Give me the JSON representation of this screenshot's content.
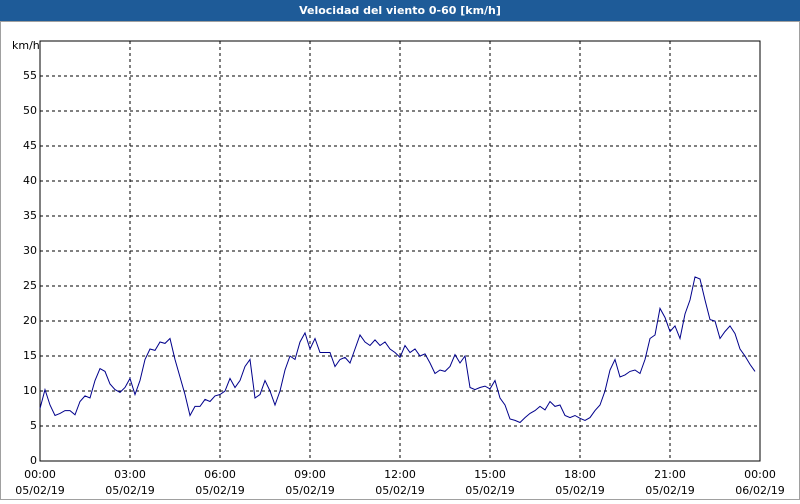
{
  "chart_data": {
    "type": "line",
    "title": "Velocidad del viento 0-60 [km/h]",
    "y_label": "km/h",
    "x": [
      0,
      10,
      20,
      30,
      40,
      50,
      60,
      70,
      80,
      90,
      100,
      110,
      120,
      130,
      140,
      150,
      160,
      170,
      180,
      190,
      200,
      210,
      220,
      230,
      240,
      250,
      260,
      270,
      280,
      290,
      300,
      310,
      320,
      330,
      340,
      350,
      360,
      370,
      380,
      390,
      400,
      410,
      420,
      430,
      440,
      450,
      460,
      470,
      480,
      490,
      500,
      510,
      520,
      530,
      540,
      550,
      560,
      570,
      580,
      590,
      600,
      610,
      620,
      630,
      640,
      650,
      660,
      670,
      680,
      690,
      700,
      710,
      720,
      730,
      740,
      750,
      760,
      770,
      780,
      790,
      800,
      810,
      820,
      830,
      840,
      850,
      860,
      870,
      880,
      890,
      900,
      910,
      920,
      930,
      940,
      950,
      960,
      970,
      980,
      990,
      1000,
      1010,
      1020,
      1030,
      1040,
      1050,
      1060,
      1070,
      1080,
      1090,
      1100,
      1110,
      1120,
      1130,
      1140,
      1150,
      1160,
      1170,
      1180,
      1190,
      1200,
      1210,
      1220,
      1230,
      1240,
      1250,
      1260,
      1270,
      1280,
      1290,
      1300,
      1310,
      1320,
      1330,
      1340,
      1350,
      1360,
      1370,
      1380,
      1390,
      1400,
      1410,
      1420,
      1430
    ],
    "series": [
      {
        "name": "Velocidad del viento",
        "color": "#00008b",
        "values": [
          7.5,
          10.2,
          8,
          6.5,
          6.8,
          7.2,
          7.2,
          6.6,
          8.5,
          9.3,
          9,
          11.5,
          13.2,
          12.8,
          11,
          10.2,
          9.8,
          10.5,
          11.8,
          9.5,
          11.5,
          14.5,
          16,
          15.8,
          17,
          16.8,
          17.5,
          14.5,
          12,
          9.5,
          6.5,
          7.8,
          7.8,
          8.8,
          8.5,
          9.3,
          9.5,
          10,
          11.8,
          10.5,
          11.5,
          13.5,
          14.5,
          9,
          9.5,
          11.5,
          10,
          8,
          10,
          13,
          15,
          14.5,
          17,
          18.3,
          16,
          17.5,
          15.5,
          15.5,
          15.5,
          13.5,
          14.5,
          14.8,
          14,
          16,
          18,
          17,
          16.5,
          17.3,
          16.5,
          17,
          16,
          15.5,
          14.8,
          16.5,
          15.5,
          16,
          15,
          15.3,
          14,
          12.5,
          13,
          12.8,
          13.5,
          15.2,
          14,
          15,
          10.5,
          10.2,
          10.5,
          10.7,
          10.3,
          11.5,
          9,
          8,
          6,
          5.8,
          5.5,
          6.2,
          6.8,
          7.2,
          7.8,
          7.3,
          8.5,
          7.8,
          8,
          6.5,
          6.2,
          6.5,
          6.1,
          5.8,
          6.2,
          7.2,
          8,
          10,
          13,
          14.5,
          12,
          12.3,
          12.8,
          13,
          12.5,
          14.5,
          17.5,
          18,
          21.8,
          20.5,
          18.5,
          19.3,
          17.5,
          21,
          23,
          26.3,
          26,
          23,
          20.2,
          20,
          17.5,
          18.5,
          19.3,
          18.2,
          16,
          15,
          13.8,
          12.8
        ]
      }
    ],
    "xlim": [
      0,
      1440
    ],
    "xticks": [
      {
        "value": 0,
        "label": "00:00",
        "date": "05/02/19"
      },
      {
        "value": 180,
        "label": "03:00",
        "date": "05/02/19"
      },
      {
        "value": 360,
        "label": "06:00",
        "date": "05/02/19"
      },
      {
        "value": 540,
        "label": "09:00",
        "date": "05/02/19"
      },
      {
        "value": 720,
        "label": "12:00",
        "date": "05/02/19"
      },
      {
        "value": 900,
        "label": "15:00",
        "date": "05/02/19"
      },
      {
        "value": 1080,
        "label": "18:00",
        "date": "05/02/19"
      },
      {
        "value": 1260,
        "label": "21:00",
        "date": "05/02/19"
      },
      {
        "value": 1440,
        "label": "00:00",
        "date": "06/02/19"
      }
    ],
    "ylim": [
      0,
      60
    ],
    "yticks": [
      0,
      5,
      10,
      15,
      20,
      25,
      30,
      35,
      40,
      45,
      50,
      55
    ],
    "grid": true
  }
}
